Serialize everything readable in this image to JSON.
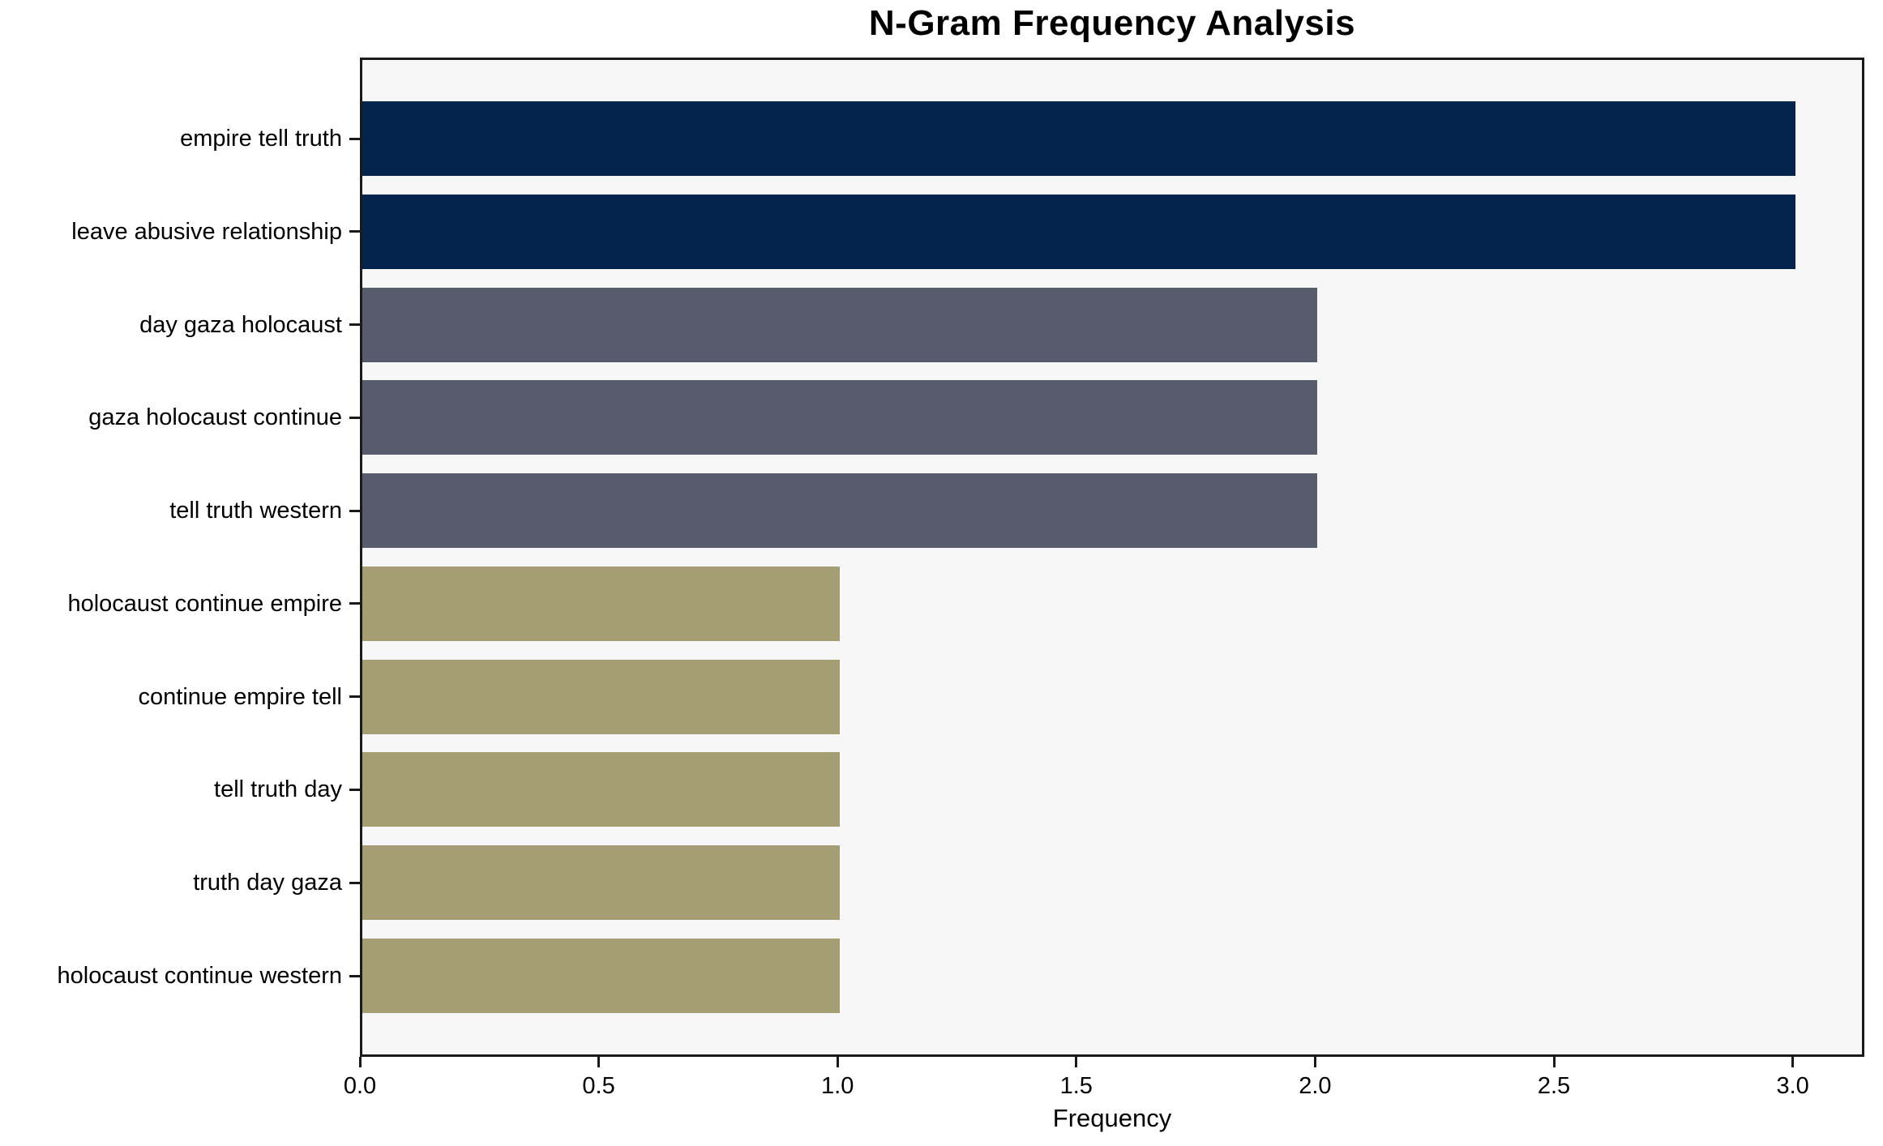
{
  "chart_data": {
    "type": "bar",
    "orientation": "horizontal",
    "title": "N-Gram Frequency Analysis",
    "xlabel": "Frequency",
    "ylabel": "",
    "categories": [
      "empire tell truth",
      "leave abusive relationship",
      "day gaza holocaust",
      "gaza holocaust continue",
      "tell truth western",
      "holocaust continue empire",
      "continue empire tell",
      "tell truth day",
      "truth day gaza",
      "holocaust continue western"
    ],
    "values": [
      3,
      3,
      2,
      2,
      2,
      1,
      1,
      1,
      1,
      1
    ],
    "bar_colors": [
      "#02244d",
      "#02244d",
      "#565c6c",
      "#565c6c",
      "#565c6c",
      "#a59d73",
      "#a59d73",
      "#a59d73",
      "#a59d73",
      "#a59d73"
    ],
    "xlim": [
      0,
      3.15
    ],
    "xticks": [
      0,
      0.5,
      1,
      1.5,
      2,
      2.5,
      3
    ],
    "xtick_labels": [
      "0.0",
      "0.5",
      "1.0",
      "1.5",
      "2.0",
      "2.5",
      "3.0"
    ],
    "grid": false,
    "legend": null,
    "plot_bg": "#f7f7f7",
    "spine_color": "#1a1a1a",
    "text_color": "#000000"
  }
}
